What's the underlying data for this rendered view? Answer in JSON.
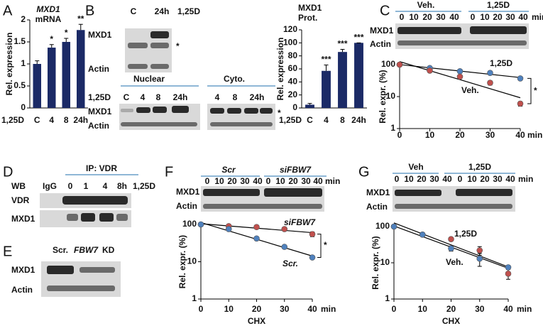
{
  "panels": [
    "A",
    "B",
    "C",
    "D",
    "E",
    "F",
    "G"
  ],
  "blots": {
    "b_top": {
      "lanes": [
        "C",
        "24h"
      ],
      "treatment": "1,25D",
      "rows": [
        "MXD1",
        "Actin"
      ],
      "mark": "*"
    },
    "b_frac": {
      "groups": [
        "Nuclear",
        "Cyto."
      ],
      "treatment": "1,25D",
      "lanes": [
        "C",
        "4",
        "8",
        "24h",
        "4",
        "8",
        "24h"
      ],
      "rows": [
        "MXD1",
        "Actin"
      ],
      "mark": "*"
    },
    "c": {
      "groups": [
        "Veh.",
        "1,25D"
      ],
      "lanes": [
        "0",
        "10",
        "20",
        "30",
        "40",
        "0",
        "10",
        "20",
        "30",
        "40"
      ],
      "unit": "min",
      "rows": [
        "MXD1",
        "Actin"
      ]
    },
    "d": {
      "title": "IP: VDR",
      "wb": "WB",
      "lanes": [
        "IgG",
        "0",
        "1",
        "4",
        "8h"
      ],
      "treatment": "1,25D",
      "rows": [
        "VDR",
        "MXD1"
      ]
    },
    "e": {
      "lanes": [
        "Scr.",
        "FBW7"
      ],
      "suffix": "KD",
      "rows": [
        "MXD1",
        "Actin"
      ]
    },
    "f": {
      "groups": [
        "Scr",
        "siFBW7"
      ],
      "lanes": [
        "0",
        "10",
        "20",
        "30",
        "40",
        "0",
        "10",
        "20",
        "30",
        "40"
      ],
      "unit": "min",
      "rows": [
        "MXD1",
        "Actin"
      ]
    },
    "g": {
      "groups": [
        "Veh",
        "1,25D"
      ],
      "lanes": [
        "0",
        "10",
        "20",
        "30",
        "40",
        "0",
        "10",
        "20",
        "30",
        "40"
      ],
      "unit": "min",
      "rows": [
        "MXD1",
        "Actin"
      ]
    }
  },
  "chart_data": [
    {
      "type": "bar",
      "title": "MXD1",
      "subtitle": "mRNA",
      "ylabel": "Rel. expression",
      "xlabel": "1,25D",
      "categories": [
        "C",
        "4",
        "8",
        "24h"
      ],
      "values": [
        1.0,
        1.37,
        1.5,
        1.77
      ],
      "errors": [
        0.07,
        0.07,
        0.08,
        0.13
      ],
      "annotations": [
        null,
        "*",
        "*",
        "**"
      ],
      "color": "#1b2a66",
      "ylim": [
        0,
        2
      ],
      "yticks": [
        0,
        0.5,
        1,
        1.5,
        2
      ]
    },
    {
      "type": "bar",
      "title": "MXD1",
      "subtitle": "Prot.",
      "ylabel": "Rel. expression",
      "xlabel": "1,25D",
      "categories": [
        "C",
        "4",
        "8",
        "24h"
      ],
      "values": [
        5,
        57,
        86,
        100
      ],
      "errors": [
        2,
        9,
        4,
        0
      ],
      "annotations": [
        null,
        "***",
        "***",
        "***"
      ],
      "color": "#1b2a66",
      "ylim": [
        0,
        120
      ],
      "yticks": [
        0,
        20,
        40,
        60,
        80,
        100,
        120
      ]
    },
    {
      "type": "line",
      "ylabel": "Rel. expr. (%)",
      "xunit": "min",
      "log_y": true,
      "annotation": "*",
      "x": [
        0,
        10,
        20,
        30,
        40
      ],
      "xlim": [
        0,
        40
      ],
      "xticks": [
        0,
        10,
        20,
        30,
        40
      ],
      "ylim": [
        1,
        100
      ],
      "yticks": [
        1,
        10,
        100
      ],
      "series": [
        {
          "name": "1,25D",
          "color": "#4f81bd",
          "values": [
            100,
            78,
            62,
            55,
            37
          ],
          "errors": [
            0,
            4,
            4,
            3,
            3
          ]
        },
        {
          "name": "Veh.",
          "color": "#c0504d",
          "values": [
            100,
            65,
            42,
            27,
            6
          ],
          "errors": [
            0,
            6,
            5,
            4,
            1
          ]
        }
      ]
    },
    {
      "type": "line",
      "ylabel": "Rel. expr. (%)",
      "xlabel": "CHX",
      "xunit": "min",
      "log_y": true,
      "annotation": "*",
      "x": [
        0,
        10,
        20,
        30,
        40
      ],
      "xlim": [
        0,
        40
      ],
      "xticks": [
        0,
        10,
        20,
        30,
        40
      ],
      "ylim": [
        1,
        100
      ],
      "yticks": [
        1,
        10,
        100
      ],
      "series": [
        {
          "name": "siFBW7",
          "color": "#c0504d",
          "values": [
            100,
            90,
            85,
            75,
            55
          ],
          "errors": [
            0,
            5,
            5,
            8,
            8
          ]
        },
        {
          "name": "Scr.",
          "color": "#4f81bd",
          "values": [
            100,
            75,
            42,
            25,
            13
          ],
          "errors": [
            0,
            3,
            2,
            2,
            1
          ]
        }
      ]
    },
    {
      "type": "line",
      "ylabel": "Rel. expr. (%)",
      "xlabel": "CHX",
      "xunit": "min",
      "log_y": true,
      "x": [
        0,
        10,
        20,
        30,
        40
      ],
      "xlim": [
        0,
        40
      ],
      "xticks": [
        0,
        10,
        20,
        30,
        40
      ],
      "ylim": [
        1,
        100
      ],
      "yticks": [
        1,
        10,
        100
      ],
      "series": [
        {
          "name": "1,25D",
          "color": "#c0504d",
          "values": [
            100,
            60,
            45,
            22,
            5
          ],
          "errors": [
            0,
            5,
            5,
            6,
            1.5
          ]
        },
        {
          "name": "Veh.",
          "color": "#4f81bd",
          "values": [
            100,
            60,
            25,
            13,
            7.5
          ],
          "errors": [
            0,
            5,
            4,
            5,
            1
          ]
        }
      ]
    }
  ]
}
